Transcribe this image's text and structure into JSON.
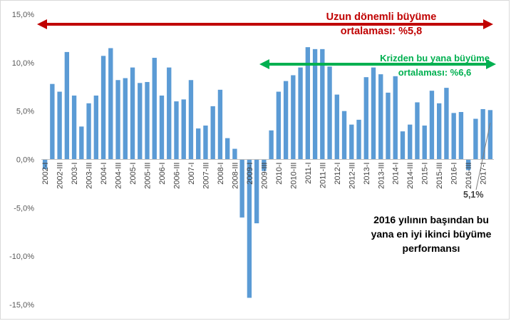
{
  "chart_data": {
    "type": "bar",
    "title": "",
    "xlabel": "",
    "ylabel": "",
    "ylim": [
      -15,
      15
    ],
    "y_ticks": [
      "15,0%",
      "10,0%",
      "5,0%",
      "0,0%",
      "-5,0%",
      "-10,0%",
      "-15,0%"
    ],
    "grid": false,
    "bar_color": "#5b9bd5",
    "categories": [
      "2002-I",
      "2002-II",
      "2002-III",
      "2002-IV",
      "2003-I",
      "2003-II",
      "2003-III",
      "2003-IV",
      "2004-I",
      "2004-II",
      "2004-III",
      "2004-IV",
      "2005-I",
      "2005-II",
      "2005-III",
      "2005-IV",
      "2006-I",
      "2006-II",
      "2006-III",
      "2006-IV",
      "2007-I",
      "2007-II",
      "2007-III",
      "2007-IV",
      "2008-I",
      "2008-II",
      "2008-III",
      "2008-IV",
      "2009-I",
      "2009-II",
      "2009-III",
      "2009-IV",
      "2010-I",
      "2010-II",
      "2010-III",
      "2010-IV",
      "2011-I",
      "2011-II",
      "2011-III",
      "2011-IV",
      "2012-I",
      "2012-II",
      "2012-III",
      "2012-IV",
      "2013-I",
      "2013-II",
      "2013-III",
      "2013-IV",
      "2014-I",
      "2014-II",
      "2014-III",
      "2014-IV",
      "2015-I",
      "2015-II",
      "2015-III",
      "2015-IV",
      "2016-I",
      "2016-II",
      "2016-III",
      "2016-IV",
      "2017-I",
      "2017-II"
    ],
    "visible_x_labels": [
      "2002-I",
      "2002-III",
      "2003-I",
      "2003-III",
      "2004-I",
      "2004-III",
      "2005-I",
      "2005-III",
      "2006-I",
      "2006-III",
      "2007-I",
      "2007-III",
      "2008-I",
      "2008-III",
      "2009-I",
      "2009-III",
      "2010-I",
      "2010-III",
      "2011-I",
      "2011-III",
      "2012-I",
      "2012-III",
      "2013-I",
      "2013-III",
      "2014-I",
      "2014-III",
      "2015-I",
      "2015-III",
      "2016-I",
      "2016-III",
      "2017-I"
    ],
    "values": [
      -1.0,
      7.8,
      7.0,
      11.1,
      6.6,
      3.4,
      5.8,
      6.6,
      10.7,
      11.5,
      8.2,
      8.4,
      9.5,
      7.9,
      8.0,
      10.5,
      6.6,
      9.5,
      6.0,
      6.2,
      8.2,
      3.2,
      3.5,
      5.5,
      7.2,
      2.2,
      1.1,
      -6.0,
      -14.3,
      -6.6,
      -1.2,
      3.0,
      7.0,
      8.1,
      8.7,
      9.5,
      11.6,
      11.4,
      11.4,
      9.6,
      6.7,
      5.0,
      3.6,
      4.1,
      8.5,
      9.5,
      8.8,
      6.9,
      8.6,
      2.9,
      3.6,
      5.9,
      3.5,
      7.1,
      5.8,
      7.4,
      4.8,
      4.9,
      -1.1,
      4.2,
      5.2,
      5.1
    ],
    "annotations": {
      "long_term": {
        "text_line1": "Uzun dönemli büyüme",
        "text_line2": "ortalaması: %5,8",
        "color": "#c00000"
      },
      "since_crisis": {
        "text_line1": "Krizden bu yana büyüme",
        "text_line2": "ortalaması: %6,6",
        "color": "#00b050"
      },
      "last_value_label": "5,1%",
      "note_line1": "2016 yılının başından bu",
      "note_line2": "yana en iyi ikinci büyüme",
      "note_line3": "performansı"
    }
  }
}
